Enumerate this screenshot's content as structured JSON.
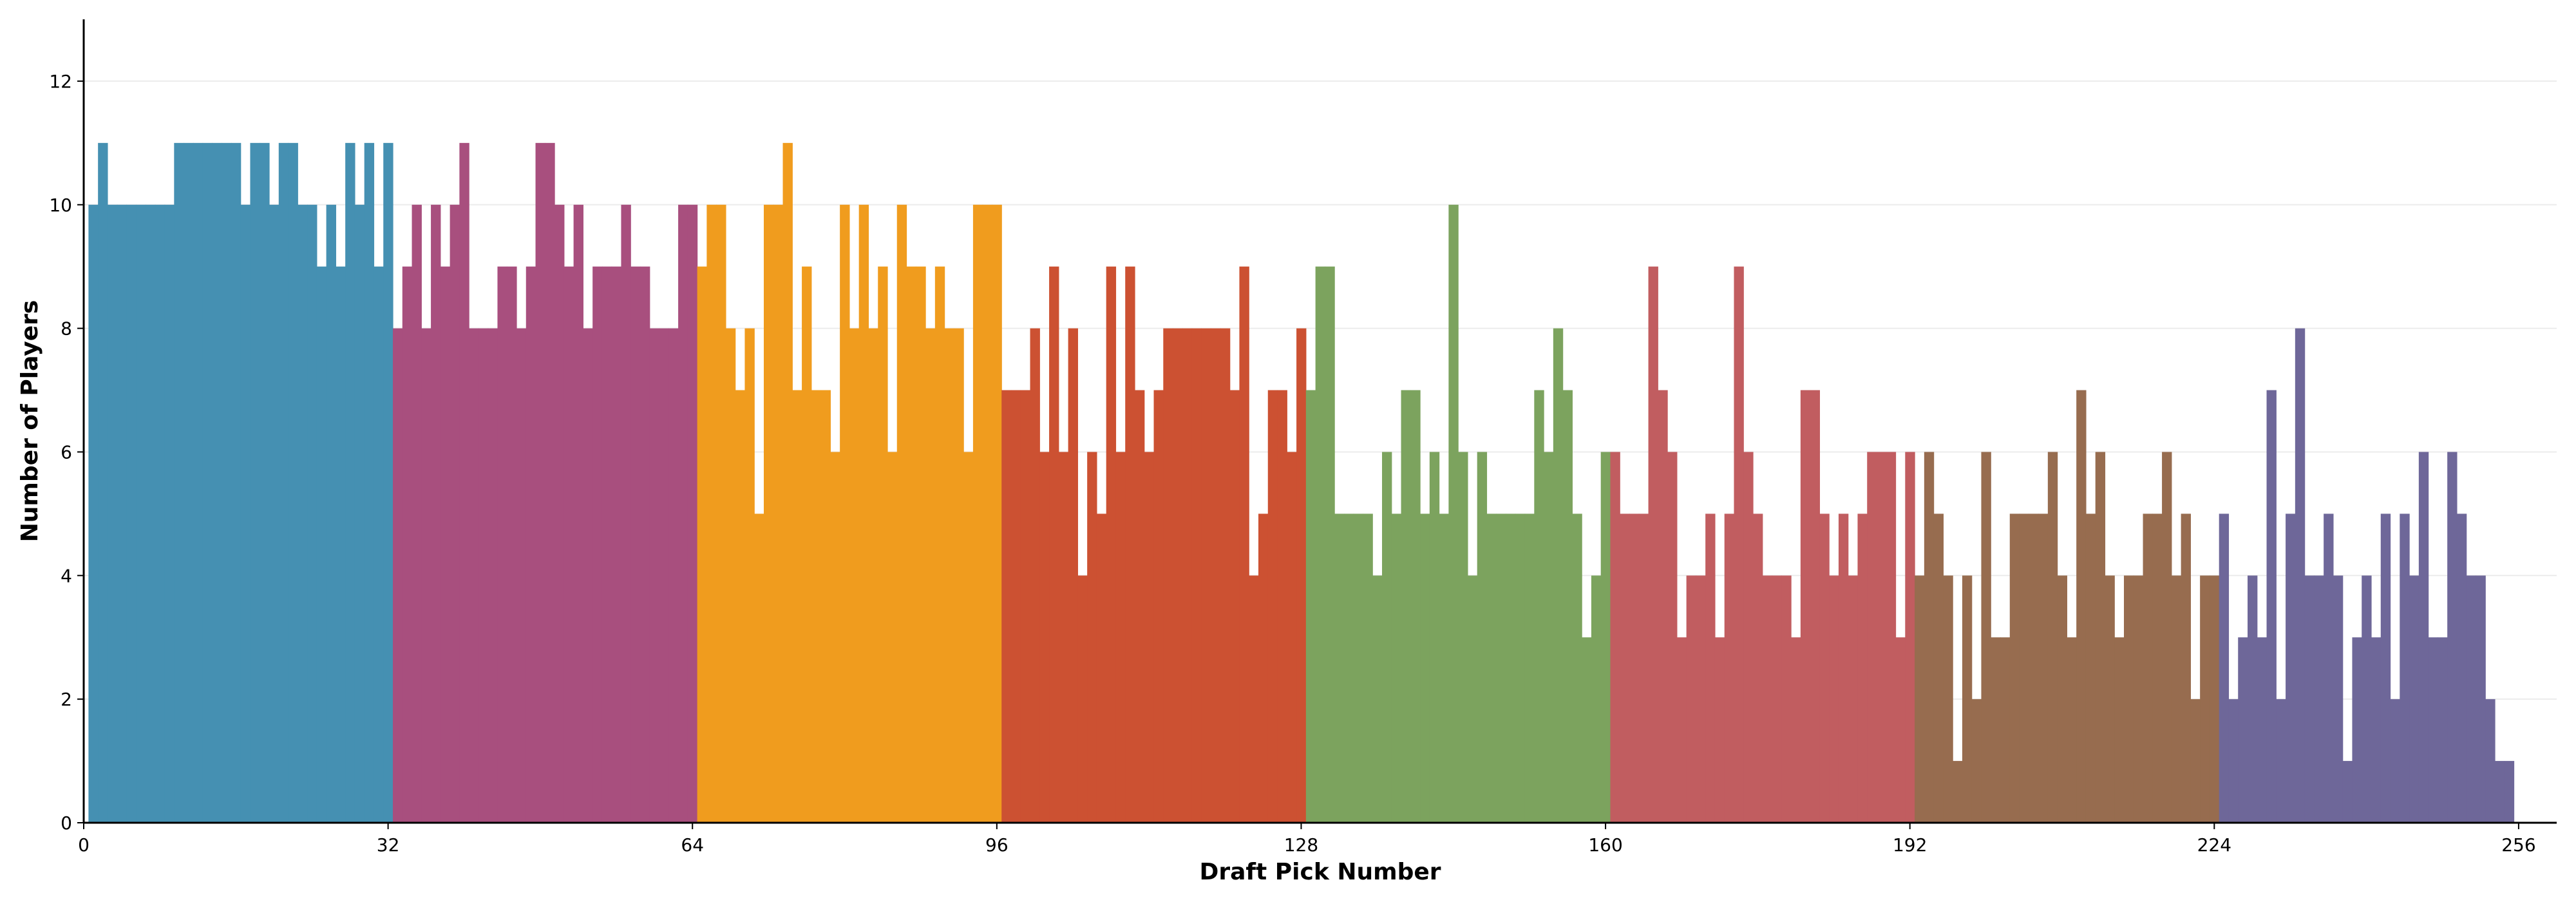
{
  "chart_data": {
    "type": "bar",
    "title": "",
    "xlabel": "Draft Pick Number",
    "ylabel": "Number of Players",
    "xlim": [
      0,
      260
    ],
    "ylim": [
      0,
      13
    ],
    "xticks": [
      0,
      32,
      64,
      96,
      128,
      160,
      192,
      224,
      256
    ],
    "yticks": [
      0,
      2,
      4,
      6,
      8,
      10,
      12
    ],
    "grid": "horizontal",
    "x_start": 1,
    "values": [
      10,
      11,
      10,
      10,
      10,
      10,
      10,
      10,
      10,
      11,
      11,
      11,
      11,
      11,
      11,
      11,
      10,
      11,
      11,
      10,
      11,
      11,
      10,
      10,
      9,
      10,
      9,
      11,
      10,
      11,
      9,
      11,
      8,
      9,
      10,
      8,
      10,
      9,
      10,
      11,
      8,
      8,
      8,
      9,
      9,
      8,
      9,
      11,
      11,
      10,
      9,
      10,
      8,
      9,
      9,
      9,
      10,
      9,
      9,
      8,
      8,
      8,
      10,
      10,
      9,
      10,
      10,
      8,
      7,
      8,
      5,
      10,
      10,
      11,
      7,
      9,
      7,
      7,
      6,
      10,
      8,
      10,
      8,
      9,
      6,
      10,
      9,
      9,
      8,
      9,
      8,
      8,
      6,
      10,
      10,
      10,
      7,
      7,
      7,
      8,
      6,
      9,
      6,
      8,
      4,
      6,
      5,
      9,
      6,
      9,
      7,
      6,
      7,
      8,
      8,
      8,
      8,
      8,
      8,
      8,
      7,
      9,
      4,
      5,
      7,
      7,
      6,
      8,
      7,
      9,
      9,
      5,
      5,
      5,
      5,
      4,
      6,
      5,
      7,
      7,
      5,
      6,
      5,
      10,
      6,
      4,
      6,
      5,
      5,
      5,
      5,
      5,
      7,
      6,
      8,
      7,
      5,
      3,
      4,
      6,
      6,
      5,
      5,
      5,
      9,
      7,
      6,
      3,
      4,
      4,
      5,
      3,
      5,
      9,
      6,
      5,
      4,
      4,
      4,
      3,
      7,
      7,
      5,
      4,
      5,
      4,
      5,
      6,
      6,
      6,
      3,
      6,
      4,
      6,
      5,
      4,
      1,
      4,
      2,
      6,
      3,
      3,
      5,
      5,
      5,
      5,
      6,
      4,
      3,
      7,
      5,
      6,
      4,
      3,
      4,
      4,
      5,
      5,
      6,
      4,
      5,
      2,
      4,
      4,
      5,
      2,
      3,
      4,
      3,
      7,
      2,
      5,
      8,
      4,
      4,
      5,
      4,
      1,
      3,
      4,
      3,
      5,
      2,
      5,
      4,
      6,
      3,
      3,
      6,
      5,
      4,
      4,
      2,
      1,
      1
    ],
    "color_groups": [
      {
        "range": [
          1,
          32
        ],
        "color": "#4590b2"
      },
      {
        "range": [
          33,
          64
        ],
        "color": "#a84f7e"
      },
      {
        "range": [
          65,
          96
        ],
        "color": "#f09c1e"
      },
      {
        "range": [
          97,
          128
        ],
        "color": "#cc5132"
      },
      {
        "range": [
          129,
          160
        ],
        "color": "#7ca35e"
      },
      {
        "range": [
          161,
          192
        ],
        "color": "#c15d60"
      },
      {
        "range": [
          193,
          224
        ],
        "color": "#976c4f"
      },
      {
        "range": [
          225,
          257
        ],
        "color": "#6e6799"
      }
    ]
  }
}
